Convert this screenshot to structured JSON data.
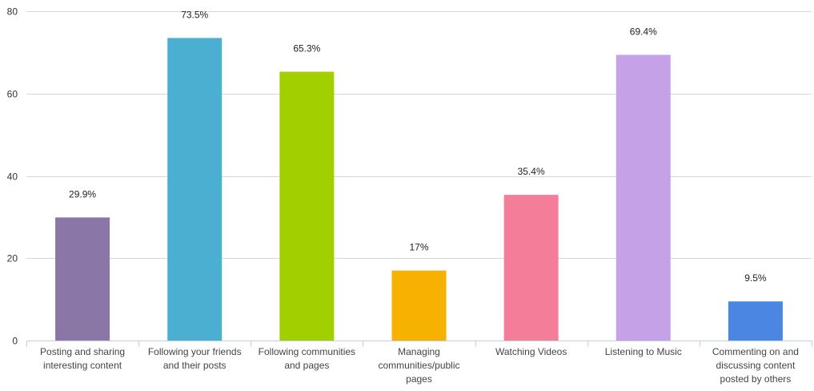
{
  "chart_data": {
    "type": "bar",
    "categories": [
      [
        "Posting and sharing",
        "interesting content"
      ],
      [
        "Following your friends",
        "and their posts"
      ],
      [
        "Following communities",
        "and pages"
      ],
      [
        "Managing",
        "communities/public",
        "pages"
      ],
      [
        "Watching Videos"
      ],
      [
        "Listening to Music"
      ],
      [
        "Commenting on and",
        "discussing content",
        "posted by others"
      ]
    ],
    "values": [
      29.9,
      73.5,
      65.3,
      17,
      35.4,
      69.4,
      9.5
    ],
    "data_labels": [
      "29.9%",
      "73.5%",
      "65.3%",
      "17%",
      "35.4%",
      "69.4%",
      "9.5%"
    ],
    "colors": [
      "#8B76A8",
      "#4AAFD0",
      "#A2CF00",
      "#F7B100",
      "#F47E9A",
      "#C5A2E8",
      "#4A86E2"
    ],
    "ylim": [
      0,
      80
    ],
    "yticks": [
      0,
      20,
      40,
      60,
      80
    ],
    "grid": true,
    "legend": "none"
  }
}
